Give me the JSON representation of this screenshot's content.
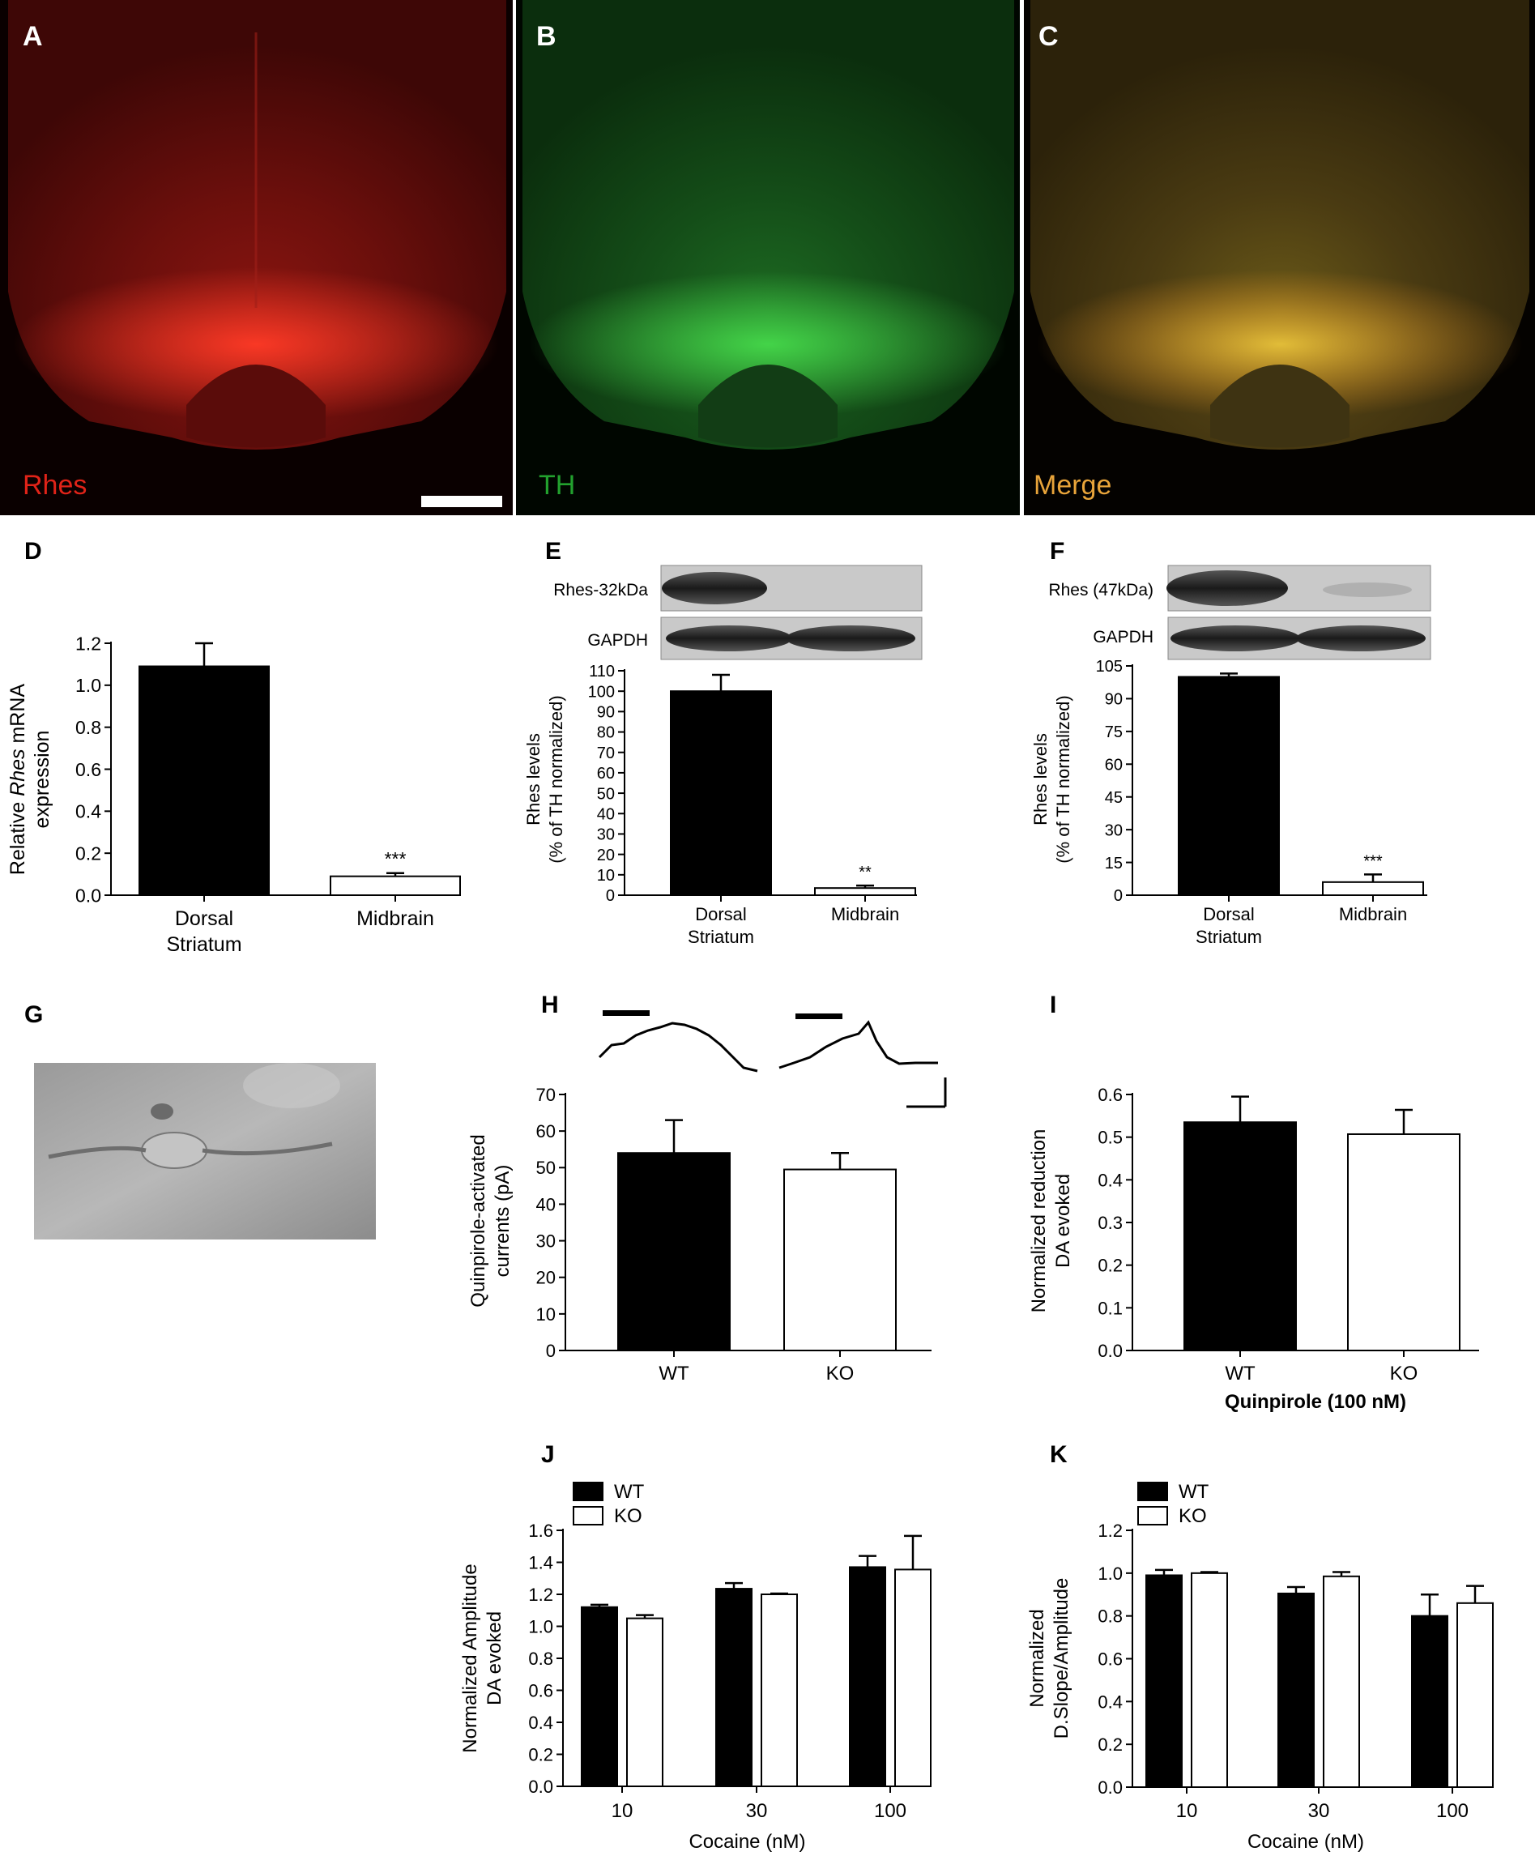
{
  "colors": {
    "red_channel": "#e02318",
    "green_channel": "#22a12e",
    "merge_label": "#e8a43a",
    "bar_wt": "#000000",
    "bar_ko": "#ffffff"
  },
  "panels": {
    "A": {
      "letter": "A",
      "channel_label": "Rhes"
    },
    "B": {
      "letter": "B",
      "channel_label": "TH"
    },
    "C": {
      "letter": "C",
      "channel_label": "Merge"
    },
    "D": {
      "letter": "D"
    },
    "E": {
      "letter": "E",
      "blot_labels": [
        "Rhes-32kDa",
        "GAPDH"
      ]
    },
    "F": {
      "letter": "F",
      "blot_labels": [
        "Rhes (47kDa)",
        "GAPDH"
      ]
    },
    "G": {
      "letter": "G"
    },
    "H": {
      "letter": "H"
    },
    "I": {
      "letter": "I"
    },
    "J": {
      "letter": "J"
    },
    "K": {
      "letter": "K"
    }
  },
  "chart_data": [
    {
      "id": "D",
      "type": "bar",
      "ylabel_lines": [
        [
          "Relative ",
          "Rhes",
          " mRNA"
        ],
        [
          "expression"
        ]
      ],
      "categories": [
        [
          "Dorsal",
          "Striatum"
        ],
        [
          "Midbrain"
        ]
      ],
      "values": [
        1.09,
        0.09
      ],
      "errors": [
        0.11,
        0.015
      ],
      "fills": [
        "#000000",
        "#ffffff"
      ],
      "annotations": [
        "",
        "***"
      ],
      "ylim": [
        0,
        1.2
      ],
      "yticks": [
        0.0,
        0.2,
        0.4,
        0.6,
        0.8,
        1.0,
        1.2
      ],
      "tick_decimals": 1
    },
    {
      "id": "E",
      "type": "bar",
      "ylabel_lines": [
        [
          "Rhes levels"
        ],
        [
          "(% of TH normalized)"
        ]
      ],
      "categories": [
        [
          "Dorsal",
          "Striatum"
        ],
        [
          "Midbrain"
        ]
      ],
      "values": [
        100,
        3.5
      ],
      "errors": [
        8,
        1.2
      ],
      "fills": [
        "#000000",
        "#ffffff"
      ],
      "annotations": [
        "",
        "**"
      ],
      "ylim": [
        0,
        110
      ],
      "yticks": [
        0,
        10,
        20,
        30,
        40,
        50,
        60,
        70,
        80,
        90,
        100,
        110
      ],
      "tick_decimals": 0
    },
    {
      "id": "F",
      "type": "bar",
      "ylabel_lines": [
        [
          "Rhes levels"
        ],
        [
          "(% of TH normalized)"
        ]
      ],
      "categories": [
        [
          "Dorsal",
          "Striatum"
        ],
        [
          "Midbrain"
        ]
      ],
      "values": [
        100,
        6
      ],
      "errors": [
        1.5,
        3.5
      ],
      "fills": [
        "#000000",
        "#ffffff"
      ],
      "annotations": [
        "",
        "***"
      ],
      "ylim": [
        0,
        105
      ],
      "yticks": [
        0,
        15,
        30,
        45,
        60,
        75,
        90,
        105
      ],
      "tick_decimals": 0
    },
    {
      "id": "H",
      "type": "bar",
      "ylabel_lines": [
        [
          "Quinpirole-activated"
        ],
        [
          "currents (pA)"
        ]
      ],
      "categories": [
        [
          "WT"
        ],
        [
          "KO"
        ]
      ],
      "values": [
        54,
        49.5
      ],
      "errors": [
        9,
        4.5
      ],
      "fills": [
        "#000000",
        "#ffffff"
      ],
      "annotations": [
        "",
        ""
      ],
      "ylim": [
        0,
        70
      ],
      "yticks": [
        0,
        10,
        20,
        30,
        40,
        50,
        60,
        70
      ],
      "tick_decimals": 0
    },
    {
      "id": "I",
      "type": "bar",
      "ylabel_lines": [
        [
          "Normalized reduction"
        ],
        [
          "DA evoked"
        ]
      ],
      "categories": [
        [
          "WT"
        ],
        [
          "KO"
        ]
      ],
      "xlabel": "Quinpirole (100 nM)",
      "values": [
        0.535,
        0.507
      ],
      "errors": [
        0.06,
        0.057
      ],
      "fills": [
        "#000000",
        "#ffffff"
      ],
      "annotations": [
        "",
        ""
      ],
      "ylim": [
        0,
        0.6
      ],
      "yticks": [
        0.0,
        0.1,
        0.2,
        0.3,
        0.4,
        0.5,
        0.6
      ],
      "tick_decimals": 1
    },
    {
      "id": "J",
      "type": "bar",
      "ylabel_lines": [
        [
          "Normalized Amplitude"
        ],
        [
          "DA evoked"
        ]
      ],
      "categories": [
        "10",
        "30",
        "100"
      ],
      "xlabel": "Cocaine (nM)",
      "series": [
        {
          "name": "WT",
          "values": [
            1.12,
            1.235,
            1.37
          ],
          "errors": [
            0.015,
            0.035,
            0.07
          ]
        },
        {
          "name": "KO",
          "values": [
            1.05,
            1.2,
            1.355
          ],
          "errors": [
            0.02,
            0.005,
            0.21
          ]
        }
      ],
      "ylim": [
        0,
        1.6
      ],
      "yticks": [
        0.0,
        0.2,
        0.4,
        0.6,
        0.8,
        1.0,
        1.2,
        1.4,
        1.6
      ],
      "tick_decimals": 1,
      "legend": "top-left"
    },
    {
      "id": "K",
      "type": "bar",
      "ylabel_lines": [
        [
          "Normalized"
        ],
        [
          "D.Slope/Amplitude"
        ]
      ],
      "categories": [
        "10",
        "30",
        "100"
      ],
      "xlabel": "Cocaine (nM)",
      "series": [
        {
          "name": "WT",
          "values": [
            0.99,
            0.905,
            0.8
          ],
          "errors": [
            0.025,
            0.03,
            0.1
          ]
        },
        {
          "name": "KO",
          "values": [
            1.0,
            0.985,
            0.86
          ],
          "errors": [
            0.005,
            0.02,
            0.08
          ]
        }
      ],
      "ylim": [
        0,
        1.2
      ],
      "yticks": [
        0.0,
        0.2,
        0.4,
        0.6,
        0.8,
        1.0,
        1.2
      ],
      "tick_decimals": 1,
      "legend": "top-left"
    }
  ]
}
